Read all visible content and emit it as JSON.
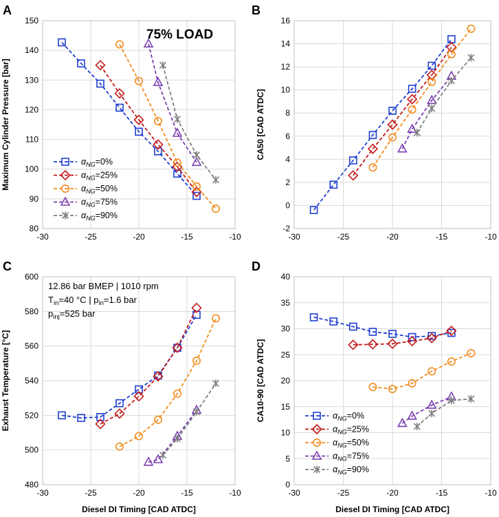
{
  "figure": {
    "load_label": "75% LOAD",
    "annotation_lines": [
      "12.86 bar BMEP | 1010 rpm",
      "T_in=40 °C | p_in=1.6 bar",
      "p_inj=525 bar"
    ],
    "series_styles": [
      {
        "name": "αNG=0%",
        "color": "#1f3fd0",
        "marker": "square"
      },
      {
        "name": "αNG=25%",
        "color": "#c21a1a",
        "marker": "diamond"
      },
      {
        "name": "αNG=50%",
        "color": "#f28c1e",
        "marker": "circle"
      },
      {
        "name": "αNG=75%",
        "color": "#7b3fb0",
        "marker": "triangle"
      },
      {
        "name": "αNG=90%",
        "color": "#7f7f7f",
        "marker": "star"
      }
    ],
    "legend_labels": [
      {
        "sym": "α",
        "sub": "NG",
        "rest": "=0%"
      },
      {
        "sym": "α",
        "sub": "NG",
        "rest": "=25%"
      },
      {
        "sym": "α",
        "sub": "NG",
        "rest": "=50%"
      },
      {
        "sym": "α",
        "sub": "NG",
        "rest": "=75%"
      },
      {
        "sym": "α",
        "sub": "NG",
        "rest": "=90%"
      }
    ]
  },
  "chart_data": [
    {
      "panel": "A",
      "type": "line",
      "xlabel": "",
      "ylabel": "Maximum Cylinder Pressure [bar]",
      "xlim": [
        -30,
        -10
      ],
      "ylim": [
        80,
        150
      ],
      "xticks": [
        -30,
        -25,
        -20,
        -15,
        -10
      ],
      "yticks": [
        80,
        90,
        100,
        110,
        120,
        130,
        140,
        150
      ],
      "legend": "bottom-left",
      "series": [
        {
          "name": "αNG=0%",
          "x": [
            -28,
            -26,
            -24,
            -22,
            -20,
            -18,
            -16,
            -14
          ],
          "y": [
            142.7,
            135.6,
            128.8,
            120.7,
            112.6,
            106.0,
            98.5,
            91.0
          ]
        },
        {
          "name": "αNG=25%",
          "x": [
            -24,
            -22,
            -20,
            -18,
            -16,
            -14
          ],
          "y": [
            135.0,
            125.5,
            116.6,
            108.3,
            100.8,
            92.3
          ]
        },
        {
          "name": "αNG=50%",
          "x": [
            -22,
            -20,
            -18,
            -16,
            -14,
            -12
          ],
          "y": [
            142.0,
            129.7,
            116.2,
            102.2,
            94.2,
            86.7
          ]
        },
        {
          "name": "αNG=75%",
          "x": [
            -19,
            -18,
            -16,
            -14
          ],
          "y": [
            142.2,
            129.2,
            112.1,
            102.3
          ]
        },
        {
          "name": "αNG=90%",
          "x": [
            -17.5,
            -16,
            -14,
            -12
          ],
          "y": [
            135.0,
            116.8,
            104.8,
            96.4
          ]
        }
      ]
    },
    {
      "panel": "B",
      "type": "line",
      "xlabel": "",
      "ylabel": "CA50 [CAD ATDC]",
      "xlim": [
        -30,
        -10
      ],
      "ylim": [
        -2,
        16
      ],
      "xticks": [
        -30,
        -25,
        -20,
        -15,
        -10
      ],
      "yticks": [
        -2,
        0,
        2,
        4,
        6,
        8,
        10,
        12,
        14,
        16
      ],
      "legend": "none",
      "series": [
        {
          "name": "αNG=0%",
          "x": [
            -28,
            -26,
            -24,
            -22,
            -20,
            -18,
            -16,
            -14
          ],
          "y": [
            -0.4,
            1.8,
            3.9,
            6.1,
            8.2,
            10.1,
            12.1,
            14.4
          ]
        },
        {
          "name": "αNG=25%",
          "x": [
            -24,
            -22,
            -20,
            -18,
            -16,
            -14
          ],
          "y": [
            2.6,
            4.9,
            7.0,
            9.2,
            11.3,
            13.7
          ]
        },
        {
          "name": "αNG=50%",
          "x": [
            -22,
            -20,
            -18,
            -16,
            -14,
            -12
          ],
          "y": [
            3.3,
            5.9,
            8.3,
            10.7,
            13.1,
            15.3
          ]
        },
        {
          "name": "αNG=75%",
          "x": [
            -19,
            -18,
            -16,
            -14
          ],
          "y": [
            4.9,
            6.6,
            9.1,
            11.2
          ]
        },
        {
          "name": "αNG=90%",
          "x": [
            -17.5,
            -16,
            -14,
            -12
          ],
          "y": [
            6.3,
            8.4,
            10.8,
            12.8
          ]
        }
      ]
    },
    {
      "panel": "C",
      "type": "line",
      "xlabel": "Diesel DI Timing [CAD ATDC]",
      "ylabel": "Exhaust Temperature [°C]",
      "xlim": [
        -30,
        -10
      ],
      "ylim": [
        480,
        600
      ],
      "xticks": [
        -30,
        -25,
        -20,
        -15,
        -10
      ],
      "yticks": [
        480,
        500,
        520,
        540,
        560,
        580,
        600
      ],
      "legend": "none",
      "series": [
        {
          "name": "αNG=0%",
          "x": [
            -28,
            -26,
            -24,
            -22,
            -20,
            -18,
            -16,
            -14
          ],
          "y": [
            520.0,
            518.5,
            519.0,
            527.0,
            535.0,
            543.0,
            559.0,
            578.0
          ]
        },
        {
          "name": "αNG=25%",
          "x": [
            -24,
            -22,
            -20,
            -18,
            -16,
            -14
          ],
          "y": [
            515.0,
            521.0,
            531.0,
            542.5,
            559.0,
            582.0
          ]
        },
        {
          "name": "αNG=50%",
          "x": [
            -22,
            -20,
            -18,
            -16,
            -14,
            -12
          ],
          "y": [
            502.0,
            508.0,
            517.5,
            532.5,
            551.5,
            576.0
          ]
        },
        {
          "name": "αNG=75%",
          "x": [
            -19,
            -18,
            -16,
            -14
          ],
          "y": [
            493.0,
            494.5,
            508.0,
            523.0
          ]
        },
        {
          "name": "αNG=90%",
          "x": [
            -17.5,
            -16,
            -14,
            -12
          ],
          "y": [
            497.0,
            506.5,
            522.0,
            538.5
          ]
        }
      ]
    },
    {
      "panel": "D",
      "type": "line",
      "xlabel": "Diesel DI Timing [CAD ATDC]",
      "ylabel": "CA10-90 [CAD ATDC]",
      "xlim": [
        -30,
        -10
      ],
      "ylim": [
        0,
        40
      ],
      "xticks": [
        -30,
        -25,
        -20,
        -15,
        -10
      ],
      "yticks": [
        0,
        5,
        10,
        15,
        20,
        25,
        30,
        35,
        40
      ],
      "legend": "bottom-left",
      "series": [
        {
          "name": "αNG=0%",
          "x": [
            -28,
            -26,
            -24,
            -22,
            -20,
            -18,
            -16,
            -14
          ],
          "y": [
            32.2,
            31.4,
            30.4,
            29.4,
            29.0,
            28.4,
            28.6,
            29.2
          ]
        },
        {
          "name": "αNG=25%",
          "x": [
            -24,
            -22,
            -20,
            -18,
            -16,
            -14
          ],
          "y": [
            26.9,
            27.0,
            27.1,
            27.6,
            28.2,
            29.6
          ]
        },
        {
          "name": "αNG=50%",
          "x": [
            -22,
            -20,
            -18,
            -16,
            -14,
            -12
          ],
          "y": [
            18.8,
            18.4,
            19.5,
            21.8,
            23.7,
            25.3
          ]
        },
        {
          "name": "αNG=75%",
          "x": [
            -19,
            -18,
            -16,
            -14
          ],
          "y": [
            11.8,
            13.2,
            15.3,
            16.9
          ]
        },
        {
          "name": "αNG=90%",
          "x": [
            -17.5,
            -16,
            -14,
            -12
          ],
          "y": [
            11.2,
            13.7,
            16.2,
            16.5
          ]
        }
      ]
    }
  ]
}
